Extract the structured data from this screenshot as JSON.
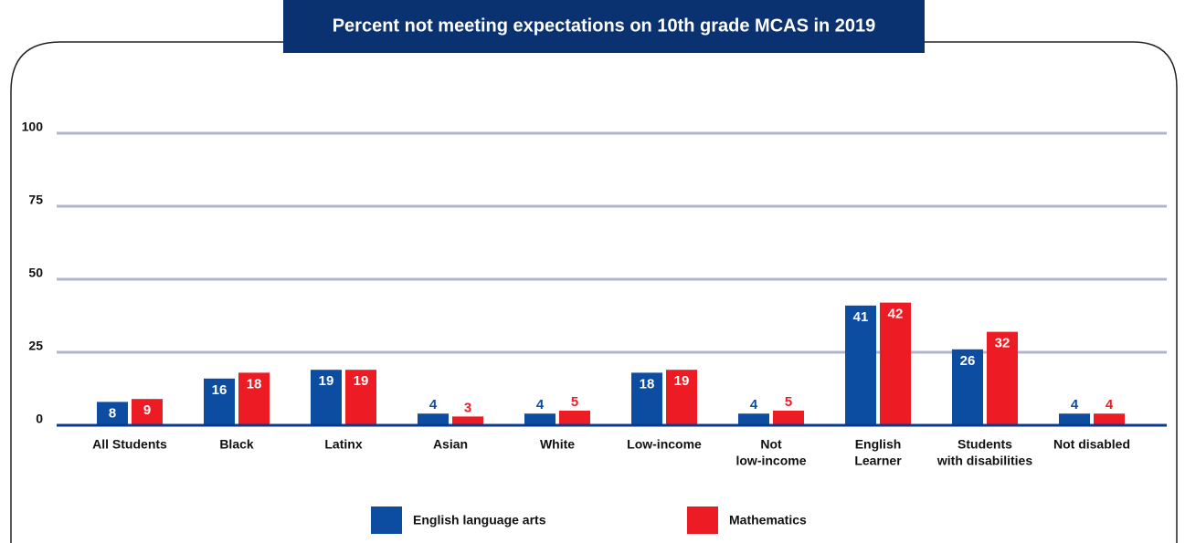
{
  "chart_data": {
    "type": "bar",
    "title": "Percent not meeting expectations on 10th grade MCAS in 2019",
    "categories": [
      [
        "All Students"
      ],
      [
        "Black"
      ],
      [
        "Latinx"
      ],
      [
        "Asian"
      ],
      [
        "White"
      ],
      [
        "Low-income"
      ],
      [
        "Not",
        "low-income"
      ],
      [
        "English",
        "Learner"
      ],
      [
        "Students",
        "with disabilities"
      ],
      [
        "Not disabled"
      ]
    ],
    "series": [
      {
        "name": "English language arts",
        "color": "#0d4da1",
        "values": [
          8,
          16,
          19,
          4,
          4,
          18,
          4,
          41,
          26,
          4
        ]
      },
      {
        "name": "Mathematics",
        "color": "#ed1c24",
        "values": [
          9,
          18,
          19,
          3,
          5,
          19,
          5,
          42,
          32,
          4
        ]
      }
    ],
    "ylim": [
      0,
      100
    ],
    "yticks": [
      0,
      25,
      50,
      75,
      100
    ],
    "grid": true,
    "legend": "bottom"
  }
}
